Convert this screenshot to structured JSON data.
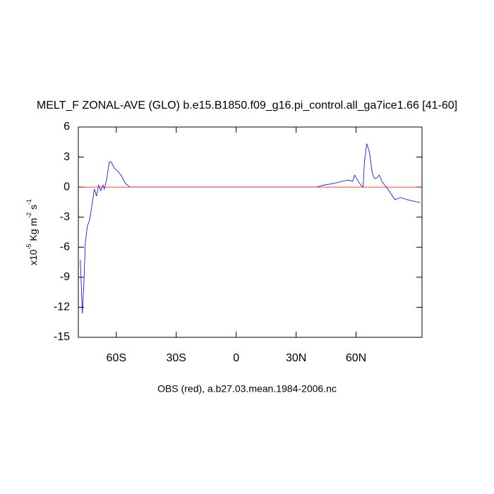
{
  "chart_data": {
    "type": "line",
    "title": "MELT_F ZONAL-AVE (GLO) b.e15.B1850.f09_g16.pi_control.all_ga7ice1.66 [41-60]",
    "xlabel": "OBS (red), a.b27.03.mean.1984-2006.nc",
    "ylabel_parts": [
      "x10",
      "-5",
      " Kg m",
      "-2",
      " s",
      "-1"
    ],
    "xlim": [
      -79,
      93
    ],
    "ylim": [
      -15,
      6
    ],
    "xticks": [
      {
        "value": -60,
        "label": "60S"
      },
      {
        "value": -30,
        "label": "30S"
      },
      0,
      {
        "value": 30,
        "label": "30N"
      },
      {
        "value": 60,
        "label": "60N"
      }
    ],
    "yticks": [
      -15,
      -12,
      -9,
      -6,
      -3,
      0,
      3,
      6
    ],
    "series": [
      {
        "color": "#0000ff",
        "x": [
          -78,
          -77,
          -76.2,
          -75.5,
          -74.5,
          -73.4,
          -72.4,
          -71,
          -69.9,
          -68.8,
          -67.8,
          -66.7,
          -66,
          -64.9,
          -63.5,
          -62.5,
          -61,
          -59,
          -57.2,
          -55.4,
          -53,
          40,
          44,
          49.4,
          54.7,
          56.5,
          58.2,
          59.3,
          60.7,
          62.5,
          63.5,
          64.2,
          65.3,
          66.7,
          68.1,
          69.2,
          70.2,
          71.6,
          73.1,
          75.2,
          76.9,
          79.4,
          82.2,
          86.5,
          92.1
        ],
        "values": [
          -7.25,
          -12.6,
          -9.5,
          -5.6,
          -3.9,
          -3.3,
          -2.1,
          -0.2,
          -0.9,
          0.2,
          -0.35,
          0.2,
          -0.2,
          0.7,
          2.5,
          2.5,
          1.9,
          1.55,
          1.05,
          0.35,
          0,
          0,
          0.2,
          0.4,
          0.65,
          0.7,
          0.55,
          1.2,
          0.7,
          0.15,
          0,
          2.5,
          4.35,
          3.5,
          1.4,
          0.85,
          0.9,
          1.2,
          0.5,
          0,
          -0.5,
          -1.25,
          -1.05,
          -1.3,
          -1.55
        ]
      },
      {
        "color": "#ff0000",
        "x": [
          -79,
          93
        ],
        "values": [
          0,
          0
        ]
      }
    ]
  }
}
